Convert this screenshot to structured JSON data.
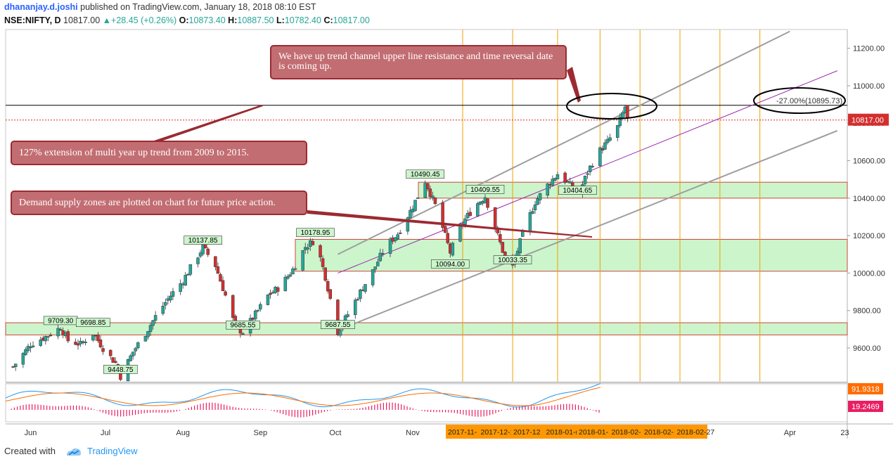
{
  "header": {
    "author": "dhananjay.d.joshi",
    "published_text": "published on TradingView.com, January 18, 2018 08:10 EST",
    "symbol": "NSE:NIFTY, D",
    "last": "10817.00",
    "change": "+28.45 (+0.26%)",
    "open_label": "O:",
    "open": "10873.40",
    "high_label": "H:",
    "high": "10887.50",
    "low_label": "L:",
    "low": "10782.40",
    "close_label": "C:",
    "close": "10817.00"
  },
  "annotations": {
    "note_top": "We have up trend channel upper line resistance and time reversal date is coming up.",
    "note_extension": "127% extension of multi year up trend from 2009 to 2015.",
    "note_zones": "Demand supply zones are plotted on chart for future price action.",
    "fib_label": "-27.00%(10895.73)"
  },
  "footer": {
    "created_with": "Created with",
    "brand": "TradingView"
  },
  "colors": {
    "up": "#26a69a",
    "down": "#d32f2f",
    "zone_fill": "#ccf5cc",
    "zone_border": "#d0453a",
    "time_line": "#f0a000",
    "channel": "#9e9e9e",
    "midline": "#9c27b0",
    "macd": "#2196f3",
    "signal": "#ff6d00",
    "hist": "#e91e63",
    "date_box": "#ff9800"
  },
  "chart_data": {
    "type": "line",
    "title": "NSE:NIFTY, D",
    "ylim": [
      9420,
      11300
    ],
    "yticks": [
      "11200.00",
      "11000.00",
      "10800.00",
      "10600.00",
      "10400.00",
      "10200.00",
      "10000.00",
      "9800.00",
      "9600.00"
    ],
    "ytick_values": [
      11200,
      11000,
      10800,
      10600,
      10400,
      10200,
      10000,
      9800,
      9600
    ],
    "xtick_labels": [
      "Jun",
      "Jul",
      "Aug",
      "Sep",
      "Oct",
      "Nov",
      "Apr",
      "23"
    ],
    "xtick_dates": [
      "2017-06-01",
      "2017-07-01",
      "2017-08-01",
      "2017-09-01",
      "2017-10-01",
      "2017-11-01",
      "2018-04-01",
      "2018-04-23"
    ],
    "date_labels": [
      "2017-11-",
      "2017-12-1",
      "2017-12",
      "2018-01-(",
      "2018-01-",
      "2018-02-",
      "2018-02-",
      "2018-02-27"
    ],
    "time_line_dates": [
      "2017-11-21",
      "2017-12-11",
      "2017-12-29",
      "2018-01-15",
      "2018-01-31",
      "2018-02-16",
      "2018-03-04",
      "2018-03-20"
    ],
    "series": [
      {
        "name": "NSE:NIFTY",
        "points": [
          {
            "x": "2017-05-25",
            "y": 9500
          },
          {
            "x": "2017-06-01",
            "y": 9620
          },
          {
            "x": "2017-06-08",
            "y": 9668
          },
          {
            "x": "2017-06-13",
            "y": 9709.3
          },
          {
            "x": "2017-06-16",
            "y": 9640
          },
          {
            "x": "2017-06-21",
            "y": 9620
          },
          {
            "x": "2017-06-26",
            "y": 9680
          },
          {
            "x": "2017-06-30",
            "y": 9600
          },
          {
            "x": "2017-07-05",
            "y": 9520
          },
          {
            "x": "2017-07-07",
            "y": 9448.75
          },
          {
            "x": "2017-07-12",
            "y": 9580
          },
          {
            "x": "2017-07-17",
            "y": 9680
          },
          {
            "x": "2017-07-22",
            "y": 9790
          },
          {
            "x": "2017-07-27",
            "y": 9880
          },
          {
            "x": "2017-08-01",
            "y": 9960
          },
          {
            "x": "2017-08-05",
            "y": 10050
          },
          {
            "x": "2017-08-09",
            "y": 10137.85
          },
          {
            "x": "2017-08-14",
            "y": 10040
          },
          {
            "x": "2017-08-18",
            "y": 9880
          },
          {
            "x": "2017-08-22",
            "y": 9710
          },
          {
            "x": "2017-08-25",
            "y": 9685.55
          },
          {
            "x": "2017-08-30",
            "y": 9780
          },
          {
            "x": "2017-09-04",
            "y": 9880
          },
          {
            "x": "2017-09-09",
            "y": 9930
          },
          {
            "x": "2017-09-14",
            "y": 10020
          },
          {
            "x": "2017-09-19",
            "y": 10140
          },
          {
            "x": "2017-09-23",
            "y": 10178.95
          },
          {
            "x": "2017-09-27",
            "y": 9980
          },
          {
            "x": "2017-10-02",
            "y": 9687.55
          },
          {
            "x": "2017-10-06",
            "y": 9780
          },
          {
            "x": "2017-10-11",
            "y": 9900
          },
          {
            "x": "2017-10-16",
            "y": 10010
          },
          {
            "x": "2017-10-21",
            "y": 10140
          },
          {
            "x": "2017-10-26",
            "y": 10210
          },
          {
            "x": "2017-10-31",
            "y": 10330
          },
          {
            "x": "2017-11-06",
            "y": 10490.45
          },
          {
            "x": "2017-11-11",
            "y": 10330
          },
          {
            "x": "2017-11-16",
            "y": 10110
          },
          {
            "x": "2017-11-21",
            "y": 10270
          },
          {
            "x": "2017-11-26",
            "y": 10360
          },
          {
            "x": "2017-11-30",
            "y": 10409.55
          },
          {
            "x": "2017-12-04",
            "y": 10240
          },
          {
            "x": "2017-12-08",
            "y": 10080
          },
          {
            "x": "2017-12-11",
            "y": 10033.35
          },
          {
            "x": "2017-12-15",
            "y": 10210
          },
          {
            "x": "2017-12-20",
            "y": 10380
          },
          {
            "x": "2017-12-25",
            "y": 10470
          },
          {
            "x": "2017-12-29",
            "y": 10530
          },
          {
            "x": "2018-01-03",
            "y": 10470
          },
          {
            "x": "2018-01-06",
            "y": 10404.65
          },
          {
            "x": "2018-01-10",
            "y": 10540
          },
          {
            "x": "2018-01-14",
            "y": 10640
          },
          {
            "x": "2018-01-18",
            "y": 10700
          },
          {
            "x": "2018-01-22",
            "y": 10780
          },
          {
            "x": "2018-01-25",
            "y": 10887.5
          },
          {
            "x": "2018-01-26",
            "y": 10817
          }
        ]
      }
    ],
    "ohlc": [
      {
        "x": "2017-05-25",
        "open": 9450,
        "high": 9510,
        "low": 9430,
        "close": 9500
      }
    ],
    "labels": [
      {
        "x": "2017-06-13",
        "y": 9709.3,
        "text": "9709.30"
      },
      {
        "x": "2017-06-26",
        "y": 9698.85,
        "text": "9698.85"
      },
      {
        "x": "2017-07-07",
        "y": 9448.75,
        "text": "9448.75"
      },
      {
        "x": "2017-08-09",
        "y": 10137.85,
        "text": "10137.85"
      },
      {
        "x": "2017-08-25",
        "y": 9685.55,
        "text": "9685.55"
      },
      {
        "x": "2017-09-23",
        "y": 10178.95,
        "text": "10178.95"
      },
      {
        "x": "2017-10-02",
        "y": 9687.55,
        "text": "9687.55"
      },
      {
        "x": "2017-11-06",
        "y": 10490.45,
        "text": "10490.45"
      },
      {
        "x": "2017-11-16",
        "y": 10094.0,
        "text": "10094.00"
      },
      {
        "x": "2017-11-30",
        "y": 10409.55,
        "text": "10409.55"
      },
      {
        "x": "2017-12-11",
        "y": 10033.35,
        "text": "10033.35"
      },
      {
        "x": "2018-01-06",
        "y": 10404.65,
        "text": "10404.65"
      }
    ],
    "zones": [
      {
        "from": 9670,
        "to": 9735
      },
      {
        "from": 10010,
        "to": 10180
      },
      {
        "from": 10400,
        "to": 10485
      }
    ],
    "horizontal_lines": [
      {
        "y": 10895.73,
        "style": "solid",
        "color": "#000000"
      },
      {
        "y": 10817.0,
        "style": "dotted",
        "color": "#d32f2f"
      }
    ],
    "channel": {
      "upper": [
        {
          "x": "2017-10-02",
          "y": 10100
        },
        {
          "x": "2018-04-01",
          "y": 11290
        }
      ],
      "middle": [
        {
          "x": "2017-10-02",
          "y": 10000
        },
        {
          "x": "2018-04-20",
          "y": 11080
        }
      ],
      "lower": [
        {
          "x": "2017-10-02",
          "y": 9695
        },
        {
          "x": "2018-04-20",
          "y": 10760
        }
      ]
    },
    "price_labels": [
      {
        "y": 10817.0,
        "text": "10817.00"
      }
    ],
    "indicator": {
      "name": "MACD",
      "values": [
        {
          "text": "91.9318"
        },
        {
          "text": "19.2469"
        }
      ]
    },
    "grid": false,
    "legend": "none"
  }
}
